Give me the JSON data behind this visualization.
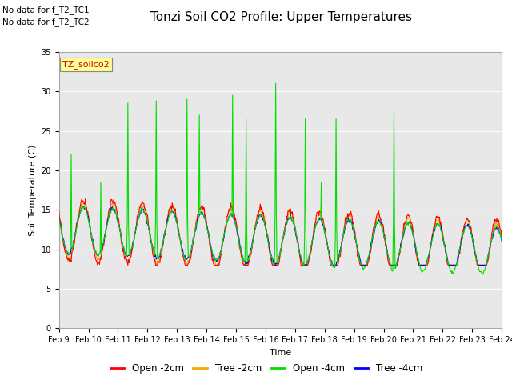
{
  "title": "Tonzi Soil CO2 Profile: Upper Temperatures",
  "ylabel": "Soil Temperature (C)",
  "xlabel": "Time",
  "annotation1": "No data for f_T2_TC1",
  "annotation2": "No data for f_T2_TC2",
  "legend_dataset": "TZ_soilco2",
  "series_labels": [
    "Open -2cm",
    "Tree -2cm",
    "Open -4cm",
    "Tree -4cm"
  ],
  "series_colors": [
    "#ff0000",
    "#ffa500",
    "#00dd00",
    "#0000ff"
  ],
  "ylim": [
    0,
    35
  ],
  "yticks": [
    0,
    5,
    10,
    15,
    20,
    25,
    30,
    35
  ],
  "xtick_labels": [
    "Feb 9",
    "Feb 10",
    "Feb 11",
    "Feb 12",
    "Feb 13",
    "Feb 14",
    "Feb 15",
    "Feb 16",
    "Feb 17",
    "Feb 18",
    "Feb 19",
    "Feb 20",
    "Feb 21",
    "Feb 22",
    "Feb 23",
    "Feb 24"
  ],
  "bg_color": "#e8e8e8",
  "fig_bg": "#ffffff",
  "grid_color": "#ffffff",
  "title_fontsize": 11,
  "axis_fontsize": 8,
  "tick_fontsize": 7
}
